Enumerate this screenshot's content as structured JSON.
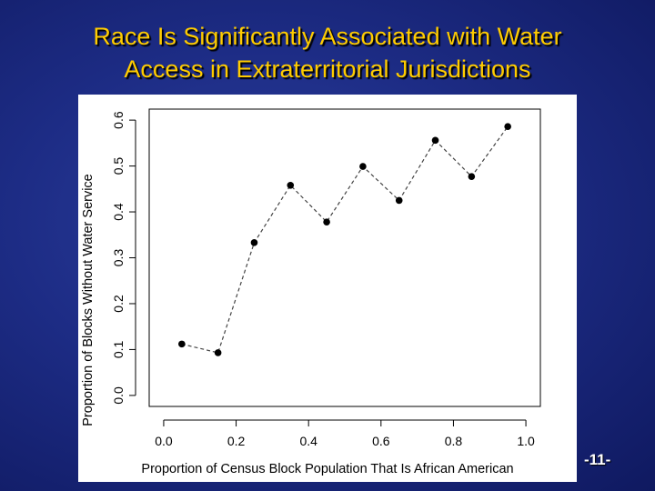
{
  "slide": {
    "title_line1": "Race Is Significantly Associated with Water",
    "title_line2": "Access in Extraterritorial Jurisdictions",
    "page_number": "-11-"
  },
  "colors": {
    "background": "#1d2c85",
    "title": "#ffcc00",
    "page_number": "#ffffff",
    "points": "#000000",
    "line": "#444444"
  },
  "chart_data": {
    "type": "line",
    "title": "",
    "xlabel": "Proportion of Census Block Population That Is African American",
    "ylabel": "Proportion of Blocks Without Water Service",
    "xlim": [
      0.0,
      1.0
    ],
    "ylim": [
      0.0,
      0.6
    ],
    "xticks": [
      "0.0",
      "0.2",
      "0.4",
      "0.6",
      "0.8",
      "1.0"
    ],
    "yticks": [
      "0.0",
      "0.1",
      "0.2",
      "0.3",
      "0.4",
      "0.5",
      "0.6"
    ],
    "line_style": "dashed",
    "marker": "filled-circle",
    "grid": false,
    "series": [
      {
        "x": [
          0.05,
          0.15,
          0.25,
          0.35,
          0.45,
          0.55,
          0.65,
          0.75,
          0.85,
          0.95
        ],
        "y": [
          0.112,
          0.093,
          0.333,
          0.458,
          0.378,
          0.499,
          0.425,
          0.556,
          0.477,
          0.586
        ]
      }
    ]
  }
}
